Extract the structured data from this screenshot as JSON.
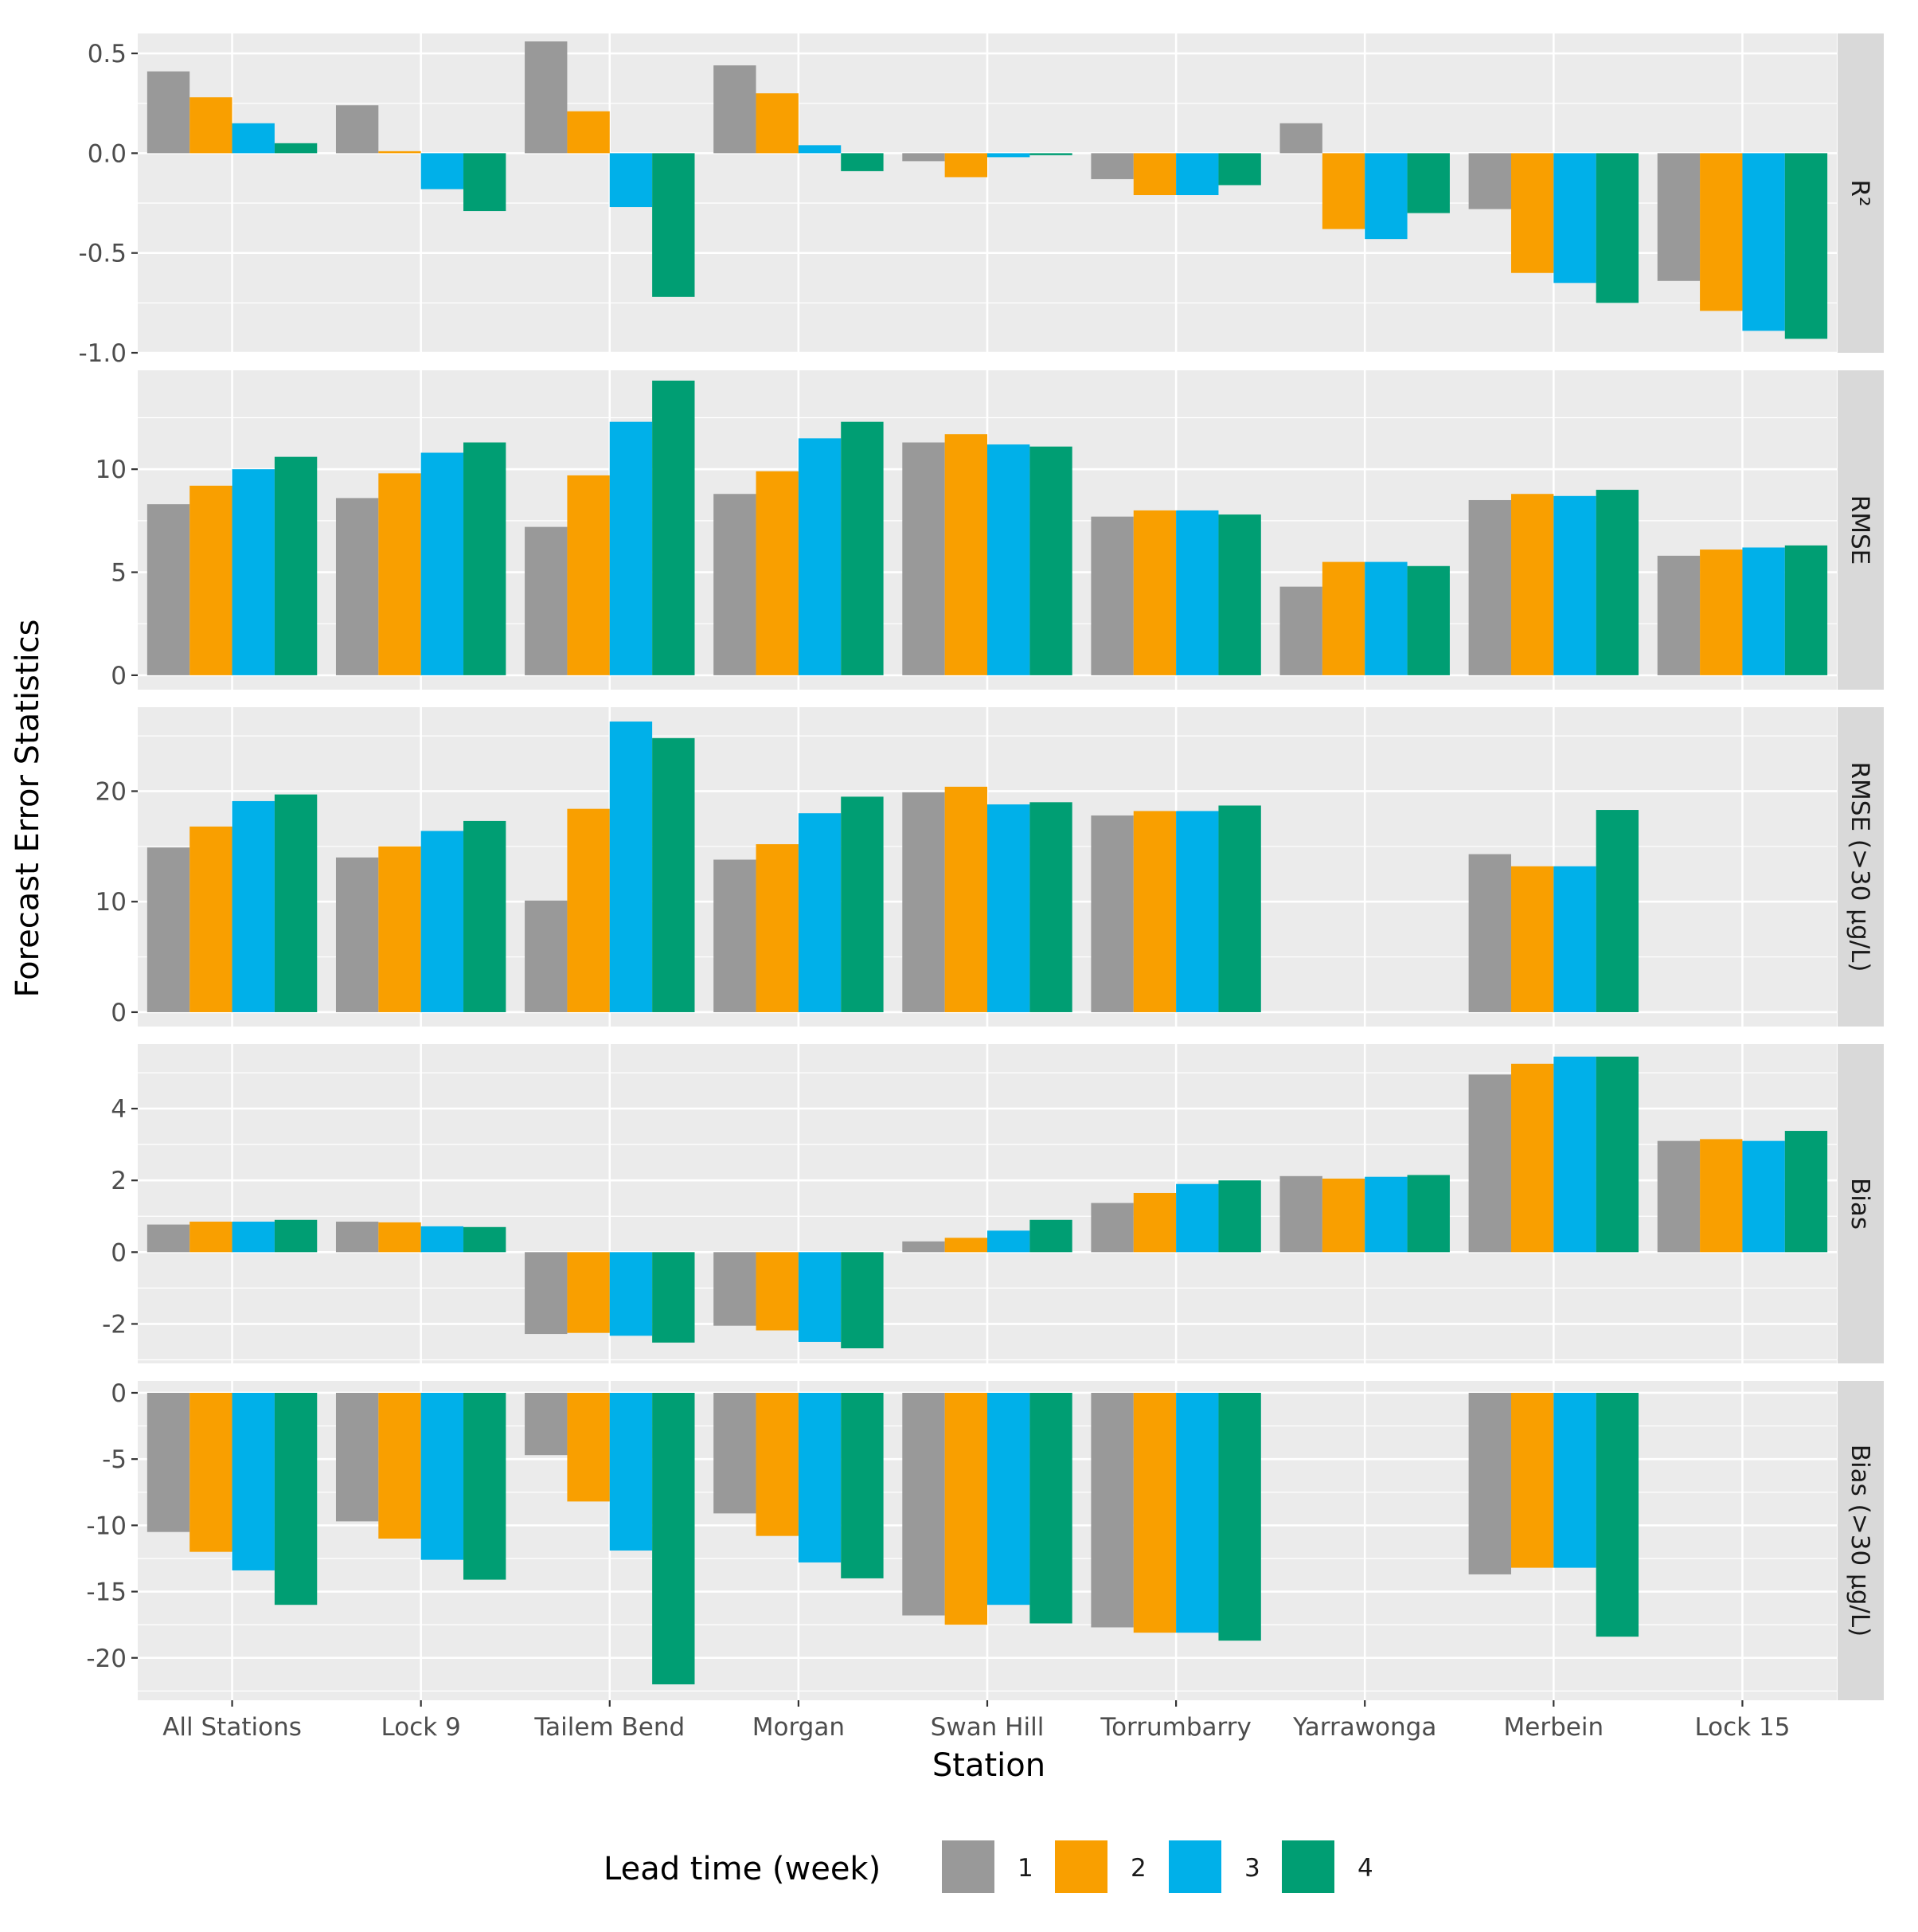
{
  "chart_data": {
    "type": "bar",
    "ylabel": "Forecast Error Statistics",
    "xlabel": "Station",
    "categories": [
      "All Stations",
      "Lock 9",
      "Tailem Bend",
      "Morgan",
      "Swan Hill",
      "Torrumbarry",
      "Yarrawonga",
      "Merbein",
      "Lock 15"
    ],
    "legend": {
      "title": "Lead time (week)",
      "position": "bottom",
      "entries": [
        "1",
        "2",
        "3",
        "4"
      ],
      "colors": [
        "#999999",
        "#F99F00",
        "#00B0E9",
        "#009E73"
      ]
    },
    "grid": true,
    "panels": [
      {
        "strip": "R²",
        "ylim": [
          -1.0,
          0.6
        ],
        "yticks": [
          0.5,
          0.0,
          -0.5,
          -1.0
        ],
        "ytick_labels": [
          "0.5",
          "0.0",
          "-0.5",
          "-1.0"
        ],
        "series": [
          {
            "name": "1",
            "values": [
              0.41,
              0.24,
              0.56,
              0.44,
              -0.04,
              -0.13,
              0.15,
              -0.28,
              -0.64
            ]
          },
          {
            "name": "2",
            "values": [
              0.28,
              0.01,
              0.21,
              0.3,
              -0.12,
              -0.21,
              -0.38,
              -0.6,
              -0.79
            ]
          },
          {
            "name": "3",
            "values": [
              0.15,
              -0.18,
              -0.27,
              0.04,
              -0.02,
              -0.21,
              -0.43,
              -0.65,
              -0.89
            ]
          },
          {
            "name": "4",
            "values": [
              0.05,
              -0.29,
              -0.72,
              -0.09,
              -0.01,
              -0.16,
              -0.3,
              -0.75,
              -0.93
            ]
          }
        ]
      },
      {
        "strip": "RMSE",
        "ylim": [
          -0.7,
          14.8
        ],
        "yticks": [
          0,
          5,
          10
        ],
        "ytick_labels": [
          "0",
          "5",
          "10"
        ],
        "series": [
          {
            "name": "1",
            "values": [
              8.3,
              8.6,
              7.2,
              8.8,
              11.3,
              7.7,
              4.3,
              8.5,
              5.8
            ]
          },
          {
            "name": "2",
            "values": [
              9.2,
              9.8,
              9.7,
              9.9,
              11.7,
              8.0,
              5.5,
              8.8,
              6.1
            ]
          },
          {
            "name": "3",
            "values": [
              10.0,
              10.8,
              12.3,
              11.5,
              11.2,
              8.0,
              5.5,
              8.7,
              6.2
            ]
          },
          {
            "name": "4",
            "values": [
              10.6,
              11.3,
              14.3,
              12.3,
              11.1,
              7.8,
              5.3,
              9.0,
              6.3
            ]
          }
        ]
      },
      {
        "strip": "RMSE (>30 µg/L)",
        "ylim": [
          -1.3,
          27.6
        ],
        "yticks": [
          0,
          10,
          20
        ],
        "ytick_labels": [
          "0",
          "10",
          "20"
        ],
        "series": [
          {
            "name": "1",
            "values": [
              14.9,
              14.0,
              10.1,
              13.8,
              19.9,
              17.8,
              null,
              14.3,
              null
            ]
          },
          {
            "name": "2",
            "values": [
              16.8,
              15.0,
              18.4,
              15.2,
              20.4,
              18.2,
              null,
              13.2,
              null
            ]
          },
          {
            "name": "3",
            "values": [
              19.1,
              16.4,
              26.3,
              18.0,
              18.8,
              18.2,
              null,
              13.2,
              null
            ]
          },
          {
            "name": "4",
            "values": [
              19.7,
              17.3,
              24.8,
              19.5,
              19.0,
              18.7,
              null,
              18.3,
              null
            ]
          }
        ]
      },
      {
        "strip": "Bias",
        "ylim": [
          -3.1,
          5.8
        ],
        "yticks": [
          4,
          2,
          0,
          -2
        ],
        "ytick_labels": [
          "4",
          "2",
          "0",
          "-2"
        ],
        "series": [
          {
            "name": "1",
            "values": [
              0.77,
              0.85,
              -2.28,
              -2.05,
              0.3,
              1.37,
              2.12,
              4.95,
              3.1
            ]
          },
          {
            "name": "2",
            "values": [
              0.85,
              0.83,
              -2.25,
              -2.18,
              0.4,
              1.65,
              2.05,
              5.25,
              3.15
            ]
          },
          {
            "name": "3",
            "values": [
              0.85,
              0.72,
              -2.33,
              -2.5,
              0.6,
              1.9,
              2.1,
              5.45,
              3.1
            ]
          },
          {
            "name": "4",
            "values": [
              0.9,
              0.7,
              -2.52,
              -2.68,
              0.9,
              2.0,
              2.15,
              5.45,
              3.38
            ]
          }
        ]
      },
      {
        "strip": "Bias (>30 µg/L)",
        "ylim": [
          -23.2,
          0.9
        ],
        "yticks": [
          0,
          -5,
          -10,
          -15,
          -20
        ],
        "ytick_labels": [
          "0",
          "-5",
          "-10",
          "-15",
          "-20"
        ],
        "series": [
          {
            "name": "1",
            "values": [
              -10.5,
              -9.7,
              -4.7,
              -9.1,
              -16.8,
              -17.7,
              null,
              -13.7,
              null
            ]
          },
          {
            "name": "2",
            "values": [
              -12.0,
              -11.0,
              -8.2,
              -10.8,
              -17.5,
              -18.1,
              null,
              -13.2,
              null
            ]
          },
          {
            "name": "3",
            "values": [
              -13.4,
              -12.6,
              -11.9,
              -12.8,
              -16.0,
              -18.1,
              null,
              -13.2,
              null
            ]
          },
          {
            "name": "4",
            "values": [
              -16.0,
              -14.1,
              -22.0,
              -14.0,
              -17.4,
              -18.7,
              null,
              -18.4,
              null
            ]
          }
        ]
      }
    ]
  }
}
